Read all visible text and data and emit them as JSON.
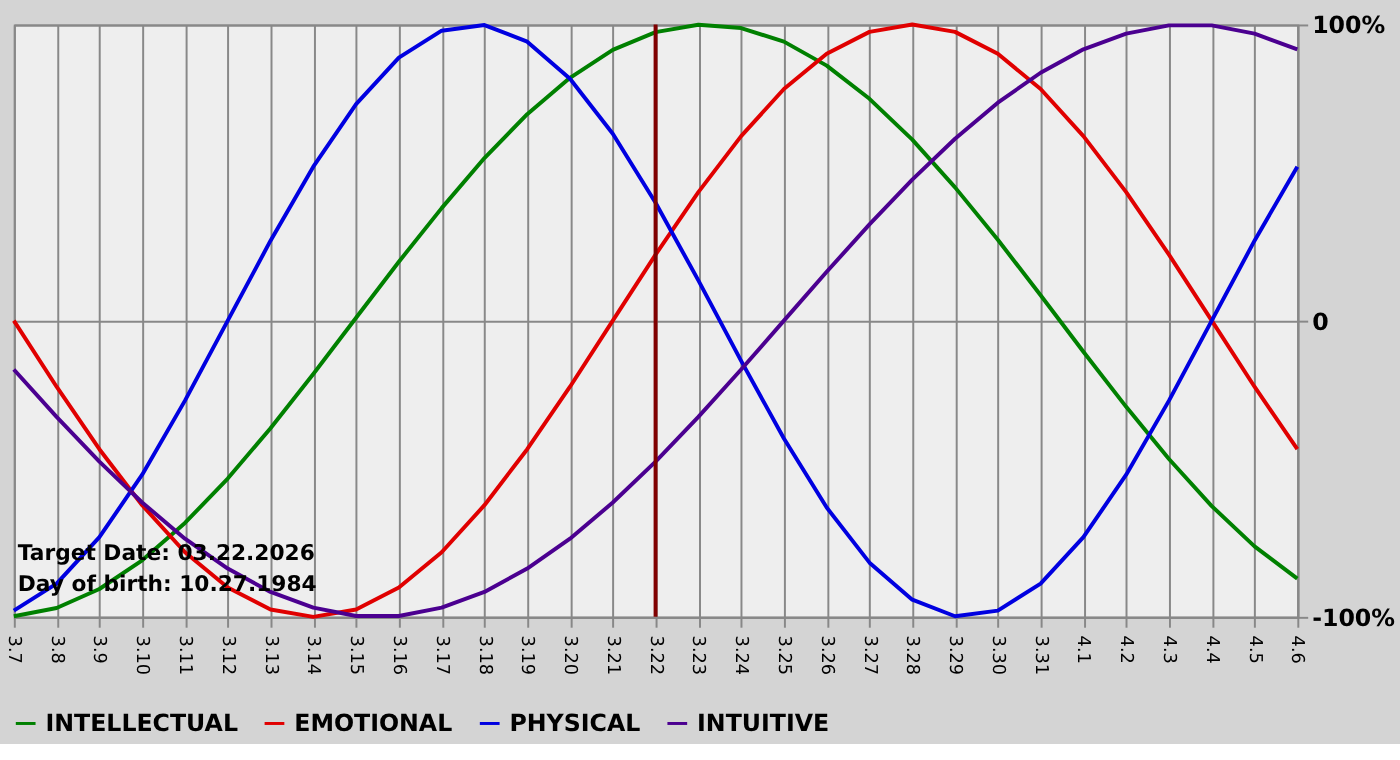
{
  "chart_data": {
    "type": "line",
    "categories": [
      "3.7",
      "3.8",
      "3.9",
      "3.10",
      "3.11",
      "3.12",
      "3.13",
      "3.14",
      "3.15",
      "3.16",
      "3.17",
      "3.18",
      "3.19",
      "3.20",
      "3.21",
      "3.22",
      "3.23",
      "3.24",
      "3.25",
      "3.26",
      "3.27",
      "3.28",
      "3.29",
      "3.30",
      "3.31",
      "4.1",
      "4.2",
      "4.3",
      "4.4",
      "4.5",
      "4.6"
    ],
    "series": [
      {
        "name": "INTELLECTUAL",
        "color": "#008000",
        "values": [
          -99.8,
          -97,
          -90.6,
          -80.9,
          -68.3,
          -53.3,
          -36.3,
          -18,
          1,
          19.9,
          38,
          54.9,
          69.7,
          82,
          91.4,
          97.4,
          99.9,
          98.8,
          94.2,
          86.1,
          74.9,
          61.1,
          45,
          27.3,
          8.6,
          -10.5,
          -29.1,
          -46.7,
          -62.6,
          -76.2,
          -87.1
        ]
      },
      {
        "name": "EMOTIONAL",
        "color": "#e00000",
        "values": [
          0,
          -22.3,
          -43.4,
          -62.3,
          -78.2,
          -90.1,
          -97.5,
          -100,
          -97.5,
          -90.1,
          -78.2,
          -62.3,
          -43.4,
          -22.3,
          0,
          22.3,
          43.4,
          62.3,
          78.2,
          90.1,
          97.5,
          100,
          97.5,
          90.1,
          78.2,
          62.3,
          43.4,
          22.3,
          0,
          -22.3,
          -43.4
        ]
      },
      {
        "name": "PHYSICAL",
        "color": "#0000e0",
        "values": [
          -97.9,
          -88.8,
          -73.1,
          -52,
          -27,
          0,
          27,
          52,
          73.1,
          88.8,
          97.9,
          99.8,
          94.2,
          81.7,
          63.1,
          39.8,
          13.6,
          -13.6,
          -39.8,
          -63.1,
          -81.7,
          -94.2,
          -99.8,
          -97.9,
          -88.8,
          -73.1,
          -52,
          -27,
          0,
          27,
          52
        ]
      },
      {
        "name": "INTUITIVE",
        "color": "#4b0090",
        "values": [
          -16.5,
          -32.5,
          -47.6,
          -61.4,
          -73.6,
          -83.7,
          -91.6,
          -96.9,
          -99.7,
          -99.7,
          -96.9,
          -91.6,
          -83.7,
          -73.6,
          -61.4,
          -47.6,
          -32.5,
          -16.5,
          0,
          16.5,
          32.5,
          47.6,
          61.4,
          73.6,
          83.7,
          91.6,
          96.9,
          99.7,
          99.7,
          96.9,
          91.6
        ]
      }
    ],
    "ylim": [
      -100,
      100
    ],
    "yticks": [
      {
        "value": 100,
        "label": "100%"
      },
      0,
      {
        "value": -100,
        "label": "-100%"
      }
    ],
    "grid": true,
    "legend": "bottom",
    "line_style": "solid",
    "ref_lines": [
      {
        "axis": "x",
        "value": "3.22",
        "color": "#800000"
      }
    ],
    "annotations": [
      "Target Date: 03.22.2026",
      "Day of birth: 10.27.1984"
    ]
  }
}
